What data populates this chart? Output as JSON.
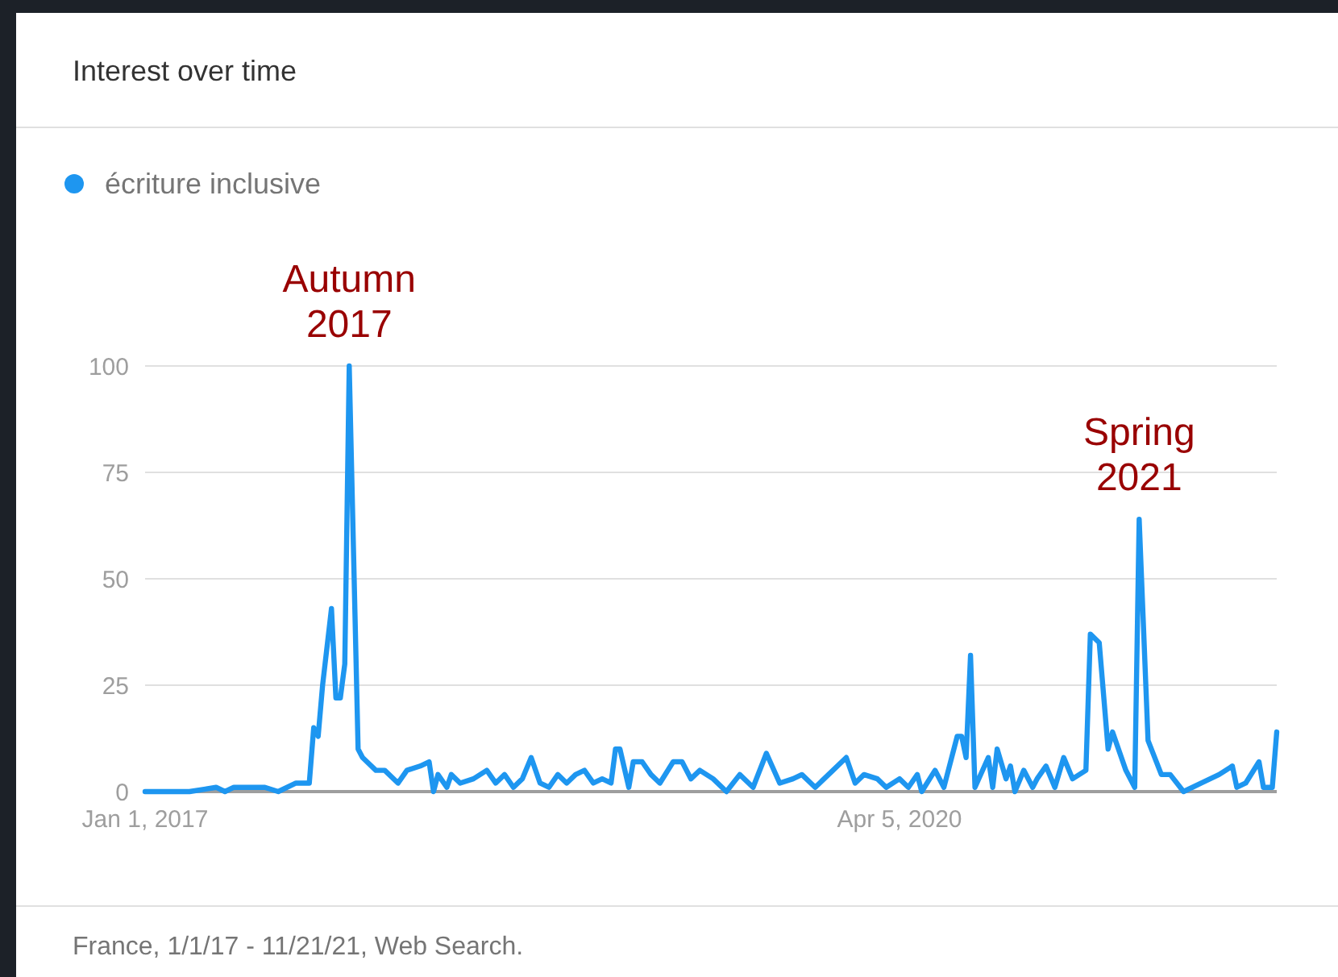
{
  "chart_data": {
    "type": "line",
    "title": "Interest over time",
    "legend": "top left",
    "grid": "y",
    "line_style": "solid",
    "marker": "none",
    "xlim": [
      "2017-01-01",
      "2021-11-21"
    ],
    "xticks": [
      {
        "value": "2017-01-01",
        "label": "Jan 1, 2017"
      },
      {
        "value": "2020-04-05",
        "label": "Apr 5, 2020"
      }
    ],
    "ylim": [
      0,
      100
    ],
    "yticks": [
      0,
      25,
      50,
      75,
      100
    ],
    "annotations": [
      {
        "text": "Autumn 2017",
        "x": "2017-11-19",
        "y": 100
      },
      {
        "text": "Spring 2021",
        "x": "2021-04-18",
        "y": 64
      },
      "France, 1/1/17 - 11/21/21, Web Search."
    ],
    "series": [
      {
        "name": "écriture inclusive",
        "color": "#1e96f0",
        "x": [
          "2017-01-01",
          "2017-03-12",
          "2017-04-23",
          "2017-05-07",
          "2017-05-21",
          "2017-06-18",
          "2017-07-09",
          "2017-07-30",
          "2017-08-27",
          "2017-09-03",
          "2017-09-17",
          "2017-09-24",
          "2017-10-01",
          "2017-10-08",
          "2017-10-22",
          "2017-10-29",
          "2017-11-05",
          "2017-11-12",
          "2017-11-19",
          "2017-12-03",
          "2017-12-10",
          "2017-12-31",
          "2018-01-14",
          "2018-02-04",
          "2018-02-18",
          "2018-03-11",
          "2018-03-25",
          "2018-04-01",
          "2018-04-08",
          "2018-04-22",
          "2018-04-29",
          "2018-05-13",
          "2018-06-03",
          "2018-06-24",
          "2018-07-08",
          "2018-07-22",
          "2018-08-05",
          "2018-08-19",
          "2018-09-02",
          "2018-09-16",
          "2018-09-30",
          "2018-10-14",
          "2018-10-28",
          "2018-11-11",
          "2018-11-25",
          "2018-12-09",
          "2018-12-23",
          "2019-01-06",
          "2019-01-13",
          "2019-01-20",
          "2019-02-03",
          "2019-02-10",
          "2019-02-24",
          "2019-03-10",
          "2019-03-24",
          "2019-04-14",
          "2019-04-28",
          "2019-05-12",
          "2019-05-26",
          "2019-06-16",
          "2019-07-07",
          "2019-07-28",
          "2019-08-18",
          "2019-09-08",
          "2019-09-29",
          "2019-10-20",
          "2019-11-03",
          "2019-11-24",
          "2019-12-22",
          "2020-01-12",
          "2020-01-26",
          "2020-02-09",
          "2020-03-01",
          "2020-03-15",
          "2020-04-05",
          "2020-04-19",
          "2020-05-03",
          "2020-05-10",
          "2020-05-31",
          "2020-06-14",
          "2020-07-05",
          "2020-07-12",
          "2020-07-19",
          "2020-07-26",
          "2020-08-02",
          "2020-08-23",
          "2020-08-30",
          "2020-09-06",
          "2020-09-20",
          "2020-09-27",
          "2020-10-04",
          "2020-10-18",
          "2020-11-01",
          "2020-11-08",
          "2020-11-22",
          "2020-12-06",
          "2020-12-20",
          "2021-01-03",
          "2021-01-24",
          "2021-01-31",
          "2021-02-14",
          "2021-02-28",
          "2021-03-07",
          "2021-03-28",
          "2021-04-11",
          "2021-04-18",
          "2021-05-02",
          "2021-05-23",
          "2021-06-06",
          "2021-06-27",
          "2021-07-25",
          "2021-08-22",
          "2021-09-12",
          "2021-09-19",
          "2021-10-03",
          "2021-10-24",
          "2021-10-31",
          "2021-11-14",
          "2021-11-21"
        ],
        "values": [
          0,
          0,
          1,
          0,
          1,
          1,
          1,
          0,
          2,
          2,
          2,
          15,
          13,
          25,
          43,
          22,
          22,
          30,
          100,
          10,
          8,
          5,
          5,
          2,
          5,
          6,
          7,
          0,
          4,
          1,
          4,
          2,
          3,
          5,
          2,
          4,
          1,
          3,
          8,
          2,
          1,
          4,
          2,
          4,
          5,
          2,
          3,
          2,
          10,
          10,
          1,
          7,
          7,
          4,
          2,
          7,
          7,
          3,
          5,
          3,
          0,
          4,
          1,
          9,
          2,
          3,
          4,
          1,
          5,
          8,
          2,
          4,
          3,
          1,
          3,
          1,
          4,
          0,
          5,
          1,
          13,
          13,
          8,
          32,
          1,
          8,
          1,
          10,
          3,
          6,
          0,
          5,
          1,
          3,
          6,
          1,
          8,
          3,
          5,
          37,
          35,
          10,
          14,
          5,
          1,
          64,
          12,
          4,
          4,
          0,
          2,
          4,
          6,
          1,
          2,
          7,
          1,
          1,
          14
        ]
      }
    ]
  }
}
